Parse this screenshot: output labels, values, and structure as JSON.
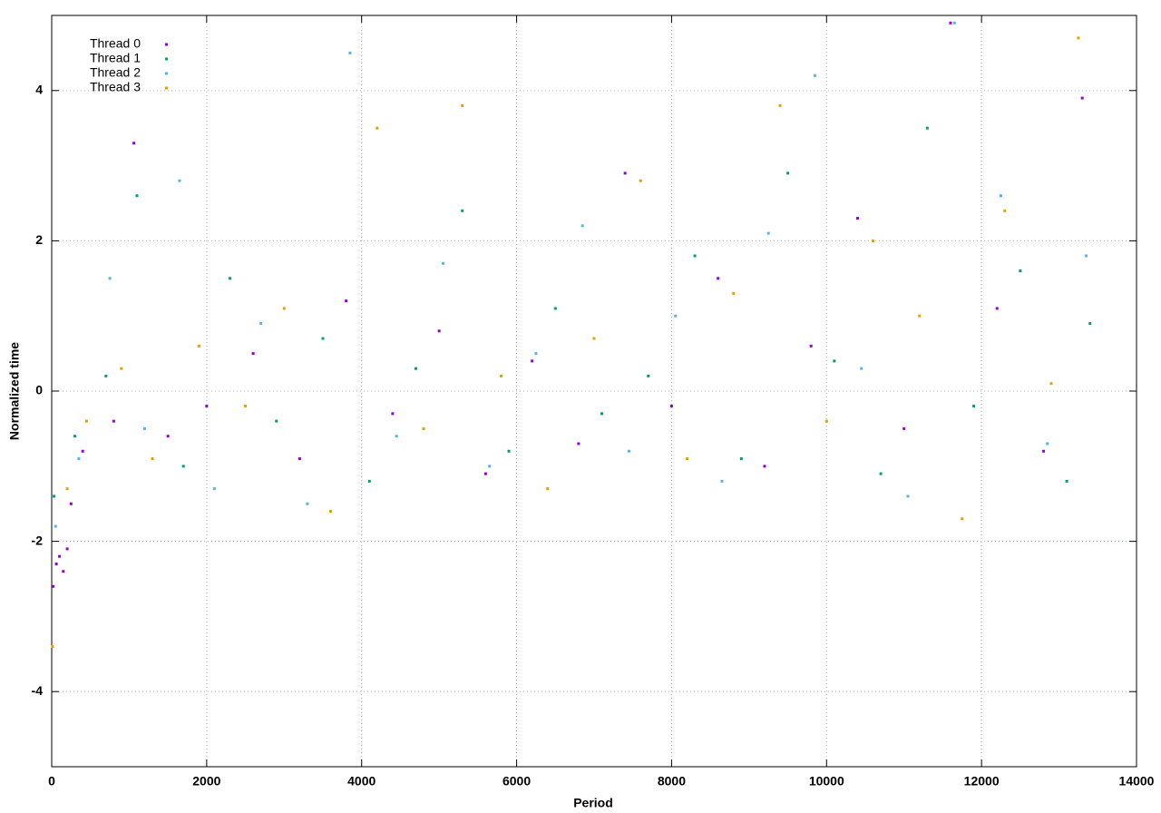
{
  "chart_data": {
    "type": "scatter",
    "xlabel": "Period",
    "ylabel": "Normalized time",
    "xlim": [
      0,
      14000
    ],
    "ylim": [
      -5,
      5
    ],
    "xticks": [
      0,
      2000,
      4000,
      6000,
      8000,
      10000,
      12000,
      14000
    ],
    "yticks": [
      -4,
      -2,
      0,
      2,
      4
    ],
    "grid": true,
    "legend": "upper-left",
    "series": [
      {
        "name": "Thread 0",
        "color": "#9400d3",
        "x": [
          20,
          60,
          100,
          150,
          200,
          250,
          400,
          800,
          1060,
          1500,
          2000,
          2600,
          3200,
          3800,
          4400,
          5000,
          5600,
          6200,
          6800,
          7400,
          8000,
          8600,
          9200,
          9800,
          10400,
          11000,
          11600,
          12200,
          12800,
          13300
        ],
        "values": [
          -2.6,
          -2.3,
          -2.2,
          -2.4,
          -2.1,
          -1.5,
          -0.8,
          -0.4,
          3.3,
          -0.6,
          -0.2,
          0.5,
          -0.9,
          1.2,
          -0.3,
          0.8,
          -1.1,
          0.4,
          -0.7,
          2.9,
          -0.2,
          1.5,
          -1.0,
          0.6,
          2.3,
          -0.5,
          4.9,
          1.1,
          -0.8,
          3.9
        ]
      },
      {
        "name": "Thread 1",
        "color": "#009e73",
        "x": [
          30,
          300,
          700,
          1100,
          1700,
          2300,
          2900,
          3500,
          4100,
          4700,
          5300,
          5900,
          6500,
          7100,
          7700,
          8300,
          8900,
          9500,
          10100,
          10700,
          11300,
          11900,
          12500,
          13100,
          13400
        ],
        "values": [
          -1.4,
          -0.6,
          0.2,
          2.6,
          -1.0,
          1.5,
          -0.4,
          0.7,
          -1.2,
          0.3,
          2.4,
          -0.8,
          1.1,
          -0.3,
          0.2,
          1.8,
          -0.9,
          2.9,
          0.4,
          -1.1,
          3.5,
          -0.2,
          1.6,
          -1.2,
          0.9
        ]
      },
      {
        "name": "Thread 2",
        "color": "#56b4e9",
        "x": [
          50,
          350,
          750,
          1200,
          1650,
          2100,
          2700,
          3300,
          3850,
          4450,
          5050,
          5650,
          6250,
          6850,
          7450,
          8050,
          8650,
          9250,
          9850,
          10450,
          11050,
          11650,
          12250,
          12850,
          13350
        ],
        "values": [
          -1.8,
          -0.9,
          1.5,
          -0.5,
          2.8,
          -1.3,
          0.9,
          -1.5,
          4.5,
          -0.6,
          1.7,
          -1.0,
          0.5,
          2.2,
          -0.8,
          1.0,
          -1.2,
          2.1,
          4.2,
          0.3,
          -1.4,
          4.9,
          2.6,
          -0.7,
          1.8
        ]
      },
      {
        "name": "Thread 3",
        "color": "#e69f00",
        "x": [
          10,
          200,
          450,
          900,
          1300,
          1900,
          2500,
          3000,
          3600,
          4200,
          4800,
          5300,
          5800,
          6400,
          7000,
          7600,
          8200,
          8800,
          9400,
          10000,
          10600,
          11200,
          11750,
          12300,
          12900,
          13250
        ],
        "values": [
          -3.4,
          -1.3,
          -0.4,
          0.3,
          -0.9,
          0.6,
          -0.2,
          1.1,
          -1.6,
          3.5,
          -0.5,
          3.8,
          0.2,
          -1.3,
          0.7,
          2.8,
          -0.9,
          1.3,
          3.8,
          -0.4,
          2.0,
          1.0,
          -1.7,
          2.4,
          0.1,
          4.7
        ]
      }
    ]
  }
}
